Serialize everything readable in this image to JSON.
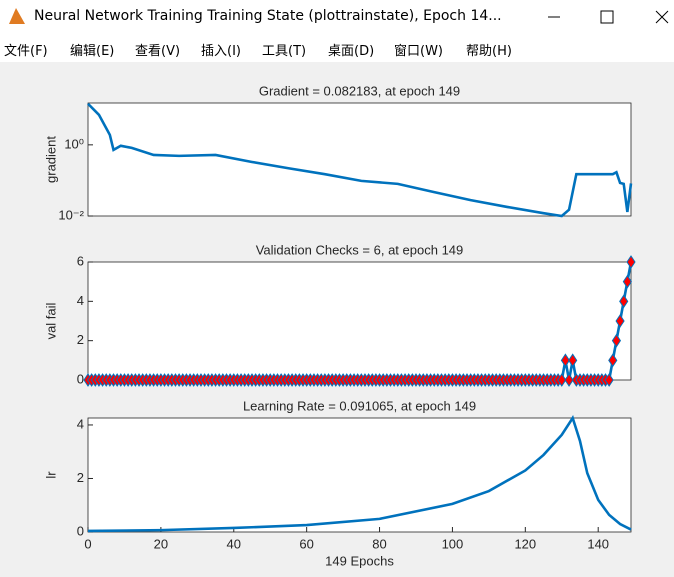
{
  "window_title": "Neural Network Training Training State (plottrainstate), Epoch 14...",
  "menu": [
    "文件(F)",
    "编辑(E)",
    "查看(V)",
    "插入(I)",
    "工具(T)",
    "桌面(D)",
    "窗口(W)",
    "帮助(H)"
  ],
  "chart_data": [
    {
      "type": "line",
      "title": "Gradient = 0.082183, at epoch 149",
      "y_label": "gradient",
      "log_y": true,
      "color": "#0072bd",
      "x": [
        0,
        3,
        6,
        7,
        9,
        12,
        18,
        25,
        35,
        45,
        55,
        65,
        75,
        85,
        95,
        105,
        115,
        125,
        130,
        132,
        134,
        140,
        144,
        145,
        146,
        147,
        148,
        149
      ],
      "values": [
        14.3,
        7,
        1.9,
        0.72,
        0.94,
        0.82,
        0.52,
        0.49,
        0.52,
        0.33,
        0.22,
        0.15,
        0.097,
        0.08,
        0.047,
        0.028,
        0.018,
        0.012,
        0.01,
        0.015,
        0.15,
        0.15,
        0.15,
        0.17,
        0.085,
        0.08,
        0.013,
        0.082183
      ],
      "xlim": [
        0,
        149
      ],
      "ylim": [
        0.01,
        15
      ],
      "yticks": [
        {
          "value": 1,
          "label": "10⁰"
        },
        {
          "value": 0.01,
          "label": "10⁻²"
        }
      ]
    },
    {
      "type": "line",
      "title": "Validation Checks = 6, at epoch 149",
      "y_label": "val fail",
      "color": "#0072bd",
      "marker": "diamond",
      "marker_color": "#ff0000",
      "x": [
        0,
        1,
        2,
        3,
        4,
        5,
        6,
        7,
        8,
        9,
        10,
        11,
        12,
        13,
        14,
        15,
        16,
        17,
        18,
        19,
        20,
        21,
        22,
        23,
        24,
        25,
        26,
        27,
        28,
        29,
        30,
        31,
        32,
        33,
        34,
        35,
        36,
        37,
        38,
        39,
        40,
        41,
        42,
        43,
        44,
        45,
        46,
        47,
        48,
        49,
        50,
        51,
        52,
        53,
        54,
        55,
        56,
        57,
        58,
        59,
        60,
        61,
        62,
        63,
        64,
        65,
        66,
        67,
        68,
        69,
        70,
        71,
        72,
        73,
        74,
        75,
        76,
        77,
        78,
        79,
        80,
        81,
        82,
        83,
        84,
        85,
        86,
        87,
        88,
        89,
        90,
        91,
        92,
        93,
        94,
        95,
        96,
        97,
        98,
        99,
        100,
        101,
        102,
        103,
        104,
        105,
        106,
        107,
        108,
        109,
        110,
        111,
        112,
        113,
        114,
        115,
        116,
        117,
        118,
        119,
        120,
        121,
        122,
        123,
        124,
        125,
        126,
        127,
        128,
        129,
        130,
        131,
        132,
        133,
        134,
        135,
        136,
        137,
        138,
        139,
        140,
        141,
        142,
        143,
        144,
        145,
        146,
        147,
        148,
        149
      ],
      "values": [
        0,
        0,
        0,
        0,
        0,
        0,
        0,
        0,
        0,
        0,
        0,
        0,
        0,
        0,
        0,
        0,
        0,
        0,
        0,
        0,
        0,
        0,
        0,
        0,
        0,
        0,
        0,
        0,
        0,
        0,
        0,
        0,
        0,
        0,
        0,
        0,
        0,
        0,
        0,
        0,
        0,
        0,
        0,
        0,
        0,
        0,
        0,
        0,
        0,
        0,
        0,
        0,
        0,
        0,
        0,
        0,
        0,
        0,
        0,
        0,
        0,
        0,
        0,
        0,
        0,
        0,
        0,
        0,
        0,
        0,
        0,
        0,
        0,
        0,
        0,
        0,
        0,
        0,
        0,
        0,
        0,
        0,
        0,
        0,
        0,
        0,
        0,
        0,
        0,
        0,
        0,
        0,
        0,
        0,
        0,
        0,
        0,
        0,
        0,
        0,
        0,
        0,
        0,
        0,
        0,
        0,
        0,
        0,
        0,
        0,
        0,
        0,
        0,
        0,
        0,
        0,
        0,
        0,
        0,
        0,
        0,
        0,
        0,
        0,
        0,
        0,
        0,
        0,
        0,
        0,
        0,
        1,
        0,
        1,
        0,
        0,
        0,
        0,
        0,
        0,
        0,
        0,
        0,
        0,
        1,
        2,
        3,
        4,
        5,
        6
      ],
      "xlim": [
        0,
        149
      ],
      "ylim": [
        0,
        6
      ],
      "yticks": [
        0,
        2,
        4,
        6
      ]
    },
    {
      "type": "line",
      "title": "Learning Rate = 0.091065, at epoch 149",
      "y_label": "lr",
      "x_label": "149 Epochs",
      "color": "#0072bd",
      "x": [
        0,
        20,
        40,
        60,
        80,
        100,
        110,
        120,
        125,
        130,
        133,
        135,
        137,
        140,
        143,
        146,
        149
      ],
      "values": [
        0.04,
        0.07,
        0.15,
        0.26,
        0.49,
        1.05,
        1.53,
        2.3,
        2.88,
        3.63,
        4.26,
        3.4,
        2.2,
        1.2,
        0.64,
        0.3,
        0.091065
      ],
      "xlim": [
        0,
        149
      ],
      "ylim": [
        0,
        4.26
      ],
      "yticks": [
        0,
        2,
        4
      ],
      "xticks": [
        0,
        20,
        40,
        60,
        80,
        100,
        120,
        140
      ]
    }
  ]
}
